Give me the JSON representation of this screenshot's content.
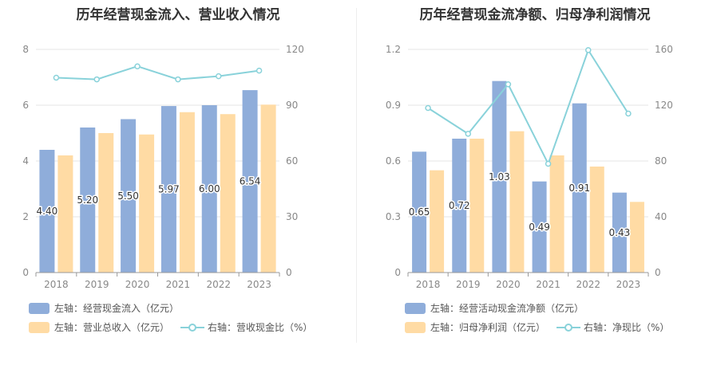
{
  "colors": {
    "bar1": "#8fadda",
    "bar2": "#ffdba4",
    "line": "#89d2da",
    "grid": "#e6e6e6",
    "axis": "#999999",
    "tick": "#888888",
    "title": "#333333"
  },
  "chart_data": [
    {
      "type": "bar",
      "title": "历年经营现金流入、营业收入情况",
      "categories": [
        "2018",
        "2019",
        "2020",
        "2021",
        "2022",
        "2023"
      ],
      "y_left": {
        "min": 0,
        "max": 8,
        "ticks": [
          "0",
          "2",
          "4",
          "6",
          "8"
        ]
      },
      "y_right": {
        "min": 0,
        "max": 120,
        "ticks": [
          "0",
          "30",
          "60",
          "90",
          "120"
        ]
      },
      "series": [
        {
          "name": "左轴：经营现金流入（亿元）",
          "type": "bar",
          "axis": "left",
          "values": [
            4.4,
            5.2,
            5.5,
            5.97,
            6.0,
            6.54
          ],
          "labels": [
            "4.40",
            "5.20",
            "5.50",
            "5.97",
            "6.00",
            "6.54"
          ]
        },
        {
          "name": "左轴：营业总收入（亿元）",
          "type": "bar",
          "axis": "left",
          "values": [
            4.2,
            5.0,
            4.95,
            5.75,
            5.68,
            6.02
          ]
        },
        {
          "name": "右轴：营收现金比（%）",
          "type": "line",
          "axis": "right",
          "values": [
            104.8,
            103.9,
            110.9,
            103.9,
            105.6,
            108.6
          ]
        }
      ]
    },
    {
      "type": "bar",
      "title": "历年经营现金流净额、归母净利润情况",
      "categories": [
        "2018",
        "2019",
        "2020",
        "2021",
        "2022",
        "2023"
      ],
      "y_left": {
        "min": 0,
        "max": 1.2,
        "ticks": [
          "0",
          "0.3",
          "0.6",
          "0.9",
          "1.2"
        ]
      },
      "y_right": {
        "min": 0,
        "max": 160,
        "ticks": [
          "0",
          "40",
          "80",
          "120",
          "160"
        ]
      },
      "series": [
        {
          "name": "左轴：经营活动现金流净额（亿元）",
          "type": "bar",
          "axis": "left",
          "values": [
            0.65,
            0.72,
            1.03,
            0.49,
            0.91,
            0.43
          ],
          "labels": [
            "0.65",
            "0.72",
            "1.03",
            "0.49",
            "0.91",
            "0.43"
          ]
        },
        {
          "name": "左轴：归母净利润（亿元）",
          "type": "bar",
          "axis": "left",
          "values": [
            0.55,
            0.72,
            0.76,
            0.63,
            0.57,
            0.38
          ]
        },
        {
          "name": "右轴：净现比（%）",
          "type": "line",
          "axis": "right",
          "values": [
            118,
            99.5,
            135,
            78,
            159.5,
            114
          ]
        }
      ]
    }
  ]
}
